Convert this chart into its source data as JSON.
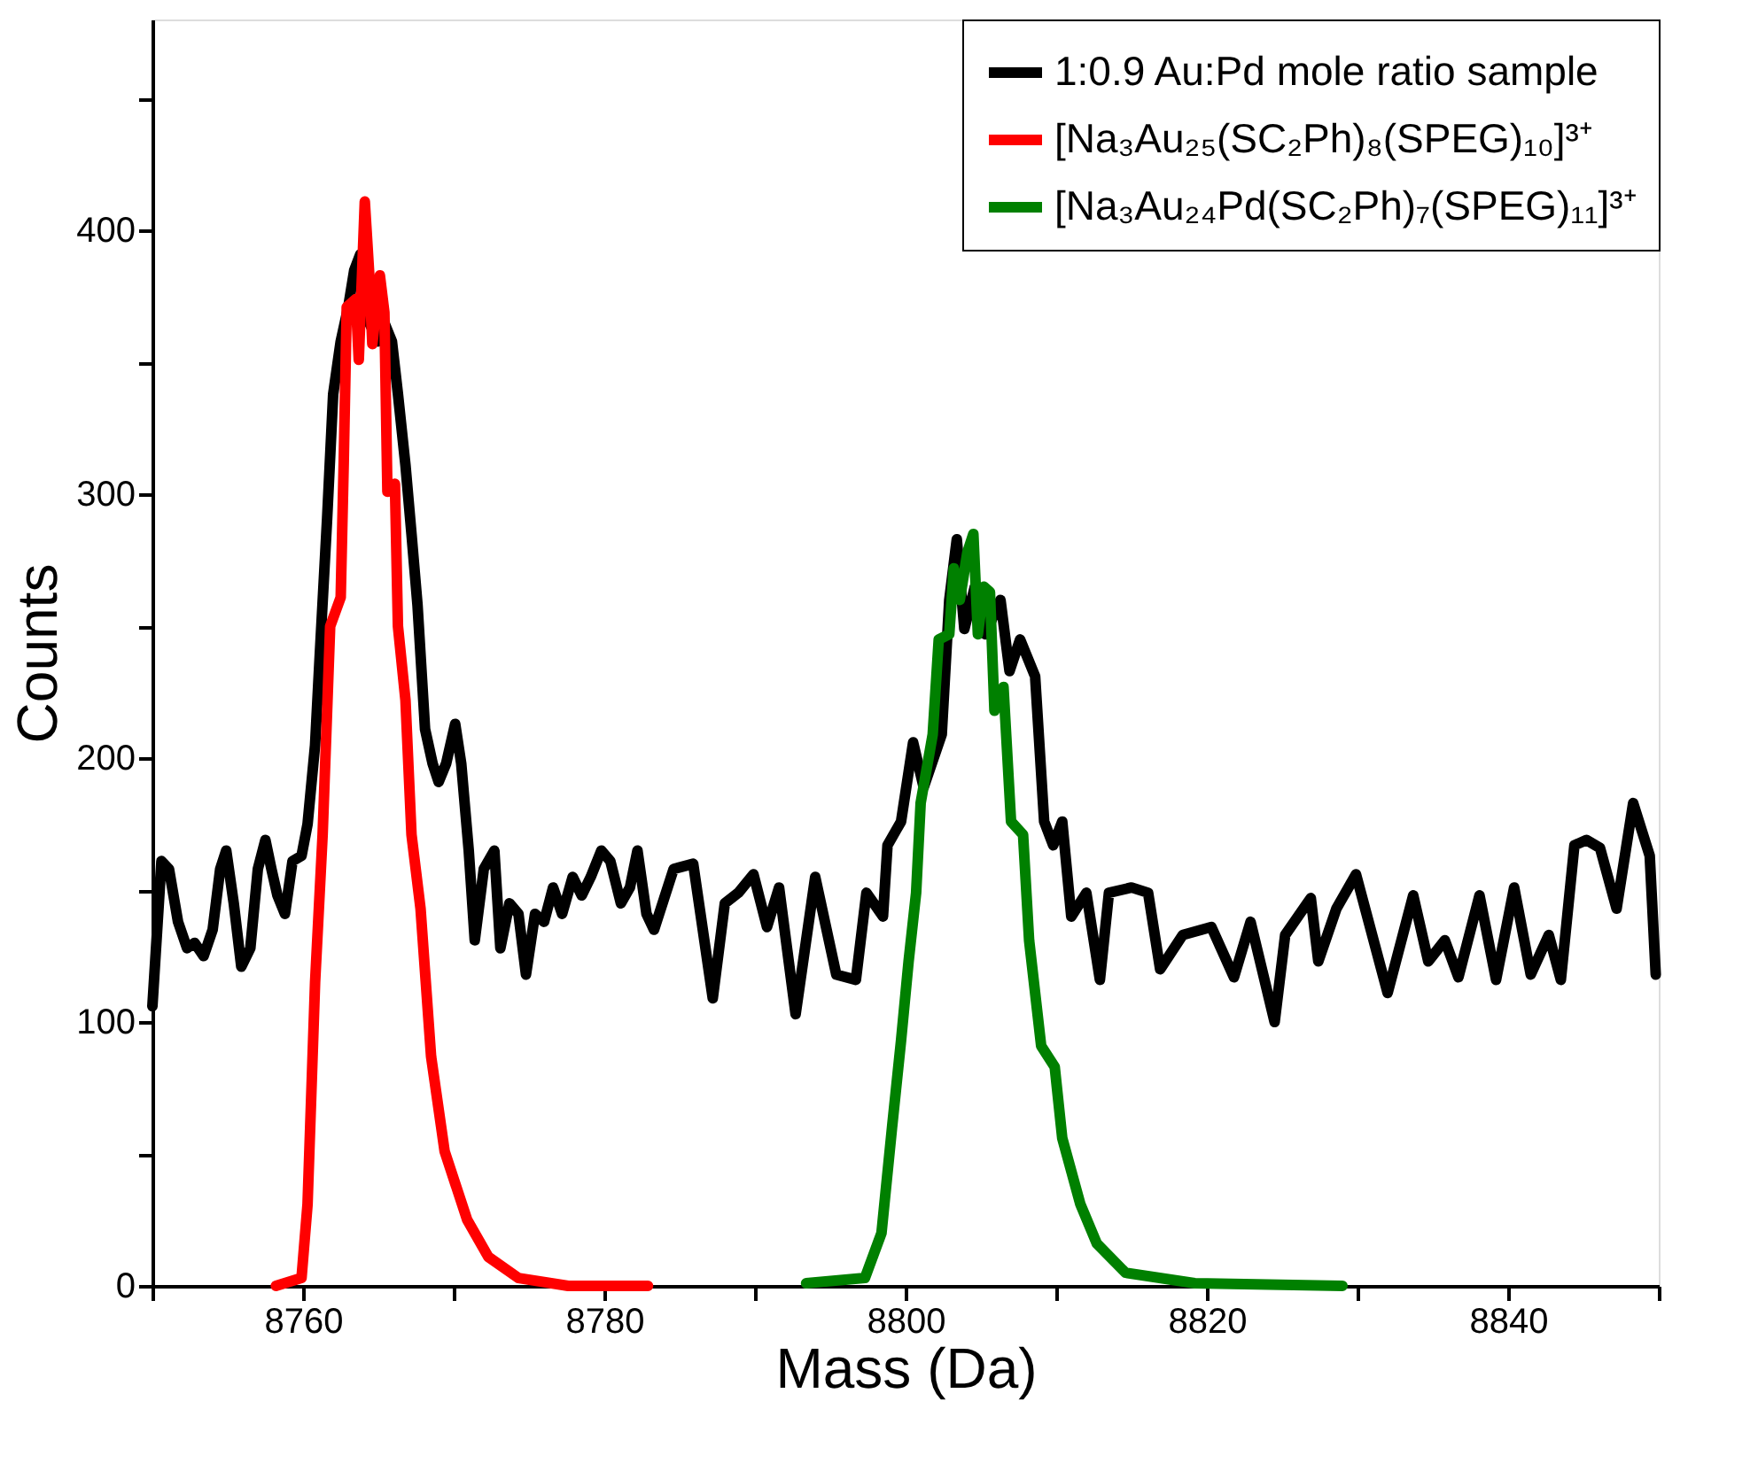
{
  "chart_data": {
    "type": "line",
    "xlabel": "Mass (Da)",
    "ylabel": "Counts",
    "xlim": [
      8750,
      8850
    ],
    "ylim": [
      0,
      480
    ],
    "xticks": [
      {
        "value": 8750,
        "label": null
      },
      8760,
      {
        "value": 8770,
        "label": null
      },
      8780,
      {
        "value": 8790,
        "label": null
      },
      8800,
      {
        "value": 8810,
        "label": null
      },
      8820,
      {
        "value": 8830,
        "label": null
      },
      8840,
      {
        "value": 8850,
        "label": null
      }
    ],
    "yticks": [
      0,
      {
        "value": 50,
        "label": null
      },
      100,
      {
        "value": 150,
        "label": null
      },
      200,
      {
        "value": 250,
        "label": null
      },
      300,
      {
        "value": 350,
        "label": null
      },
      400,
      {
        "value": 450,
        "label": null
      }
    ],
    "grid": false,
    "legend": "top right",
    "marker": "none",
    "line_style": "solid",
    "series": [
      {
        "name": "1:0.9 Au:Pd mole ratio sample",
        "color": "#000000",
        "x": [
          8750.0,
          8750.6,
          8751.1,
          8751.7,
          8752.3,
          8752.8,
          8753.4,
          8754.0,
          8754.5,
          8754.9,
          8755.4,
          8755.9,
          8756.5,
          8757.0,
          8757.5,
          8757.9,
          8758.3,
          8758.8,
          8759.3,
          8759.9,
          8760.3,
          8760.8,
          8761.1,
          8761.6,
          8762.0,
          8762.5,
          8763.0,
          8763.4,
          8763.8,
          8764.4,
          8765.0,
          8765.4,
          8765.9,
          8766.3,
          8766.8,
          8767.2,
          8767.6,
          8768.1,
          8768.6,
          8769.0,
          8769.5,
          8770.1,
          8770.5,
          8771.0,
          8771.4,
          8772.0,
          8772.7,
          8773.1,
          8773.7,
          8774.3,
          8774.8,
          8775.4,
          8776.0,
          8776.6,
          8777.2,
          8777.9,
          8778.5,
          8779.1,
          8779.8,
          8780.4,
          8781.1,
          8781.7,
          8782.2,
          8782.8,
          8783.3,
          8784.6,
          8785.9,
          8787.2,
          8788.0,
          8788.9,
          8789.9,
          8790.8,
          8791.6,
          8792.7,
          8794.0,
          8795.4,
          8796.7,
          8797.4,
          8798.5,
          8798.8,
          8799.7,
          8800.5,
          8801.2,
          8802.4,
          8802.9,
          8803.4,
          8803.9,
          8804.6,
          8805.3,
          8806.3,
          8806.9,
          8807.6,
          8808.6,
          8809.2,
          8809.8,
          8810.4,
          8811.0,
          8812.0,
          8812.9,
          8813.5,
          8815.0,
          8816.1,
          8816.9,
          8818.4,
          8820.3,
          8821.8,
          8822.9,
          8824.5,
          8825.2,
          8826.9,
          8827.4,
          8828.6,
          8829.9,
          8832.0,
          8833.7,
          8834.7,
          8835.8,
          8836.7,
          8838.1,
          8839.2,
          8840.4,
          8841.5,
          8842.7,
          8843.5,
          8844.4,
          8845.2,
          8846.1,
          8847.2,
          8848.3,
          8849.4,
          8849.8
        ],
        "values": [
          106,
          161,
          158,
          138,
          128,
          130,
          125,
          135,
          158,
          165,
          145,
          121,
          128,
          158,
          169,
          158,
          148,
          141,
          161,
          163,
          175,
          205,
          238,
          291,
          338,
          358,
          371,
          385,
          391,
          365,
          358,
          365,
          358,
          338,
          311,
          285,
          258,
          211,
          198,
          191,
          198,
          213,
          198,
          165,
          131,
          158,
          165,
          128,
          145,
          141,
          118,
          141,
          138,
          151,
          141,
          155,
          148,
          155,
          165,
          161,
          145,
          151,
          165,
          141,
          135,
          158,
          160,
          109,
          145,
          149,
          156,
          136,
          151,
          103,
          155,
          118,
          116,
          149,
          140,
          167,
          176,
          206,
          189,
          209,
          260,
          283,
          249,
          265,
          247,
          260,
          233,
          245,
          231,
          176,
          167,
          176,
          140,
          149,
          116,
          149,
          151,
          149,
          120,
          133,
          136,
          117,
          138,
          100,
          133,
          147,
          123,
          143,
          156,
          111,
          148,
          123,
          131,
          117,
          148,
          116,
          151,
          118,
          133,
          116,
          167,
          169,
          166,
          143,
          183,
          163,
          118
        ]
      },
      {
        "name": "[Na₃Au₂₅(SC₂Ph)₈(SPEG)₁₀]³⁺",
        "color": "#ff0000",
        "x": [
          8758.2,
          8759.9,
          8760.3,
          8760.8,
          8761.3,
          8761.8,
          8762.5,
          8762.7,
          8762.9,
          8763.5,
          8763.7,
          8764.1,
          8764.4,
          8764.6,
          8765.1,
          8765.4,
          8765.6,
          8766.1,
          8766.3,
          8766.8,
          8767.2,
          8767.8,
          8768.5,
          8769.4,
          8770.9,
          8772.3,
          8774.3,
          8777.6,
          8782.9
        ],
        "values": [
          0,
          3,
          31,
          115,
          171,
          250,
          261,
          312,
          371,
          374,
          351,
          411,
          383,
          357,
          383,
          369,
          301,
          304,
          250,
          222,
          171,
          143,
          87,
          51,
          25,
          11,
          3,
          0,
          0
        ]
      },
      {
        "name": "[Na₃Au₂₄Pd(SC₂Ph)₇(SPEG)₁₁]³⁺",
        "color": "#008000",
        "x": [
          8793.4,
          8797.3,
          8798.4,
          8799.1,
          8799.7,
          8800.2,
          8800.7,
          8801.0,
          8801.8,
          8802.2,
          8802.9,
          8803.2,
          8803.6,
          8804.1,
          8804.5,
          8804.8,
          8805.2,
          8805.6,
          8805.9,
          8806.5,
          8807.0,
          8807.8,
          8808.2,
          8809.0,
          8809.9,
          8810.4,
          8811.6,
          8812.7,
          8814.6,
          8819.2,
          8829.0
        ],
        "values": [
          1,
          3,
          20,
          60,
          93,
          123,
          149,
          183,
          209,
          245,
          247,
          272,
          260,
          278,
          285,
          247,
          265,
          263,
          218,
          227,
          176,
          171,
          131,
          91,
          83,
          56,
          31,
          16,
          5,
          1,
          0
        ]
      }
    ]
  }
}
